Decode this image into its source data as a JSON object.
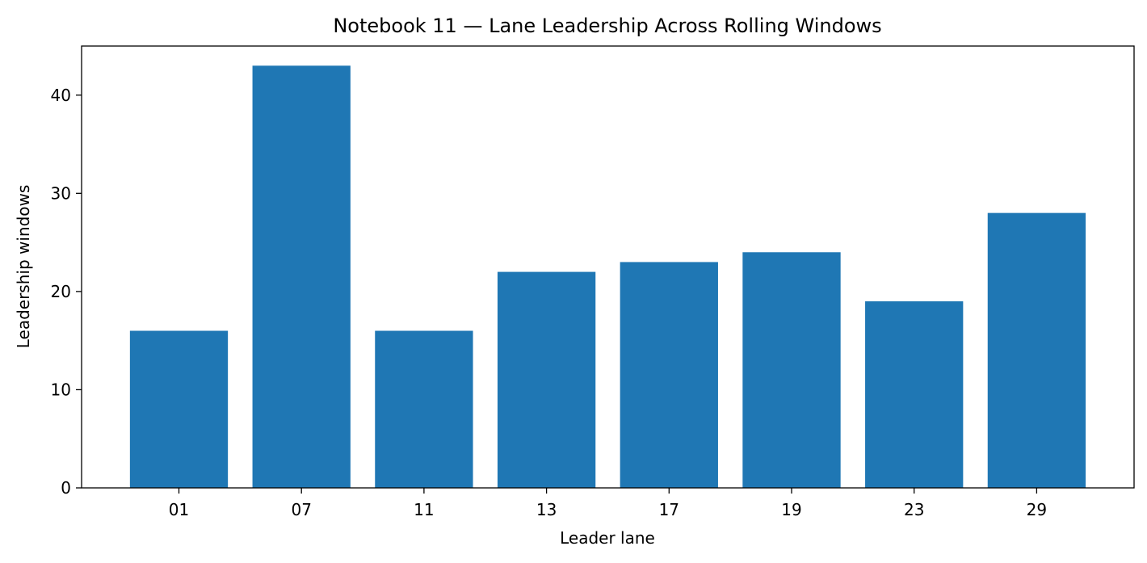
{
  "chart_data": {
    "type": "bar",
    "title": "Notebook 11 — Lane Leadership Across Rolling Windows",
    "xlabel": "Leader lane",
    "ylabel": "Leadership windows",
    "categories": [
      "01",
      "07",
      "11",
      "13",
      "17",
      "19",
      "23",
      "29"
    ],
    "values": [
      16,
      43,
      16,
      22,
      23,
      24,
      19,
      28
    ],
    "ylim": [
      0,
      45
    ],
    "yticks": [
      0,
      10,
      20,
      30,
      40
    ],
    "grid": false,
    "legend": "none",
    "bar_color": "#1f77b4"
  }
}
